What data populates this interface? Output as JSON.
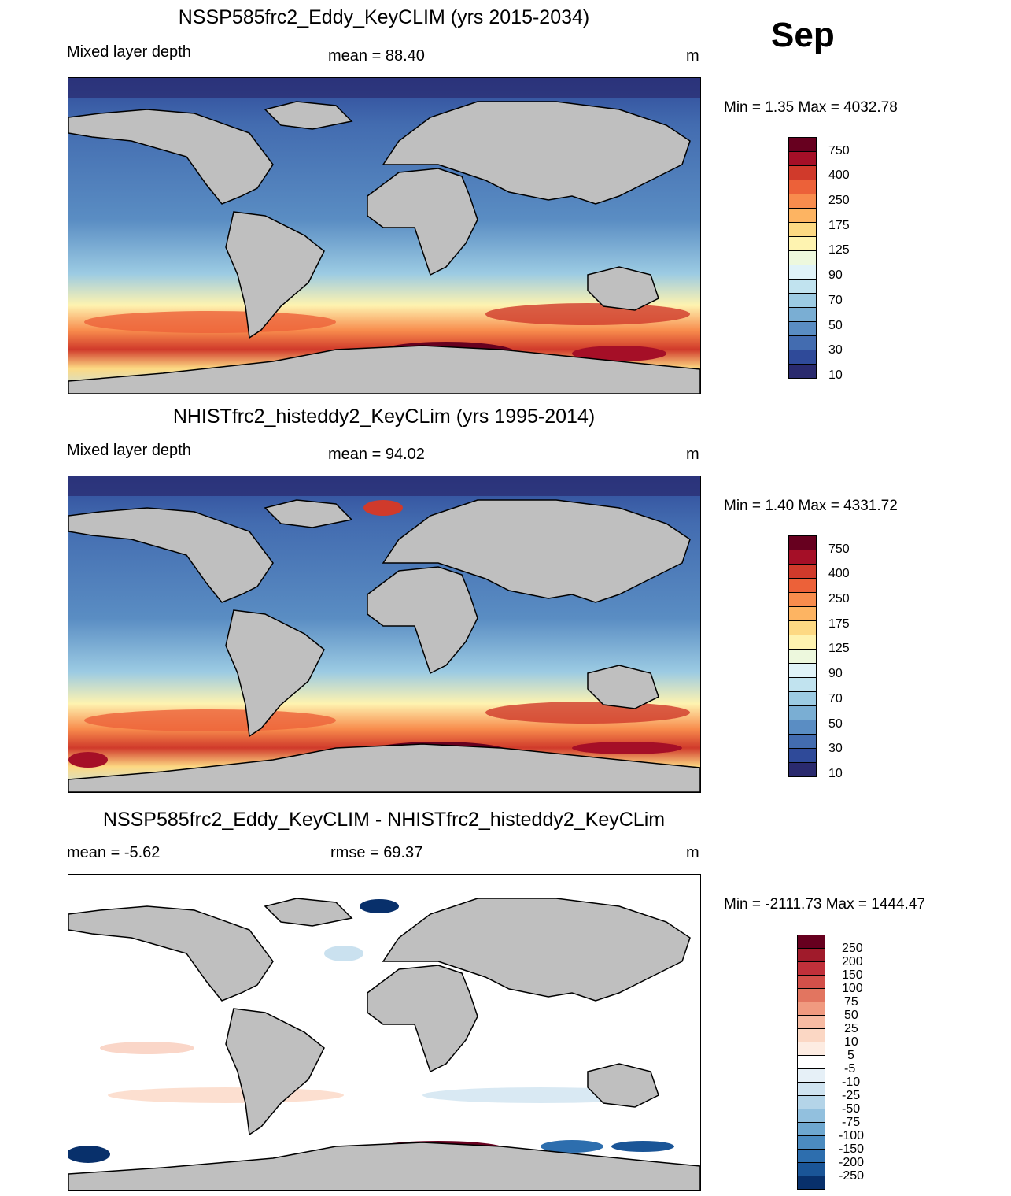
{
  "month": "Sep",
  "panels": [
    {
      "title": "NSSP585frc2_Eddy_KeyCLIM (yrs 2015-2034)",
      "left_label": "Mixed layer depth",
      "center_label": "mean =  88.40",
      "right_label": "m",
      "minmax": "Min =   1.35 Max = 4032.78"
    },
    {
      "title": "NHISTfrc2_histeddy2_KeyCLim (yrs 1995-2014)",
      "left_label": "Mixed layer depth",
      "center_label": "mean =  94.02",
      "right_label": "m",
      "minmax": "Min =   1.40 Max = 4331.72"
    },
    {
      "title": "NSSP585frc2_Eddy_KeyCLIM - NHISTfrc2_histeddy2_KeyCLim",
      "left_label": "mean =  -5.62",
      "center_label": "rmse =  69.37",
      "right_label": "m",
      "minmax": "Min = -2111.73 Max = 1444.47"
    }
  ],
  "colorbar_mld": {
    "labels": [
      "750",
      "400",
      "250",
      "175",
      "125",
      "90",
      "70",
      "50",
      "30",
      "10"
    ],
    "colors": [
      "#67001f",
      "#a50f27",
      "#d03a2b",
      "#ec6139",
      "#f88c4d",
      "#fdb462",
      "#fdd983",
      "#fef3b0",
      "#edf8dd",
      "#e0f3f8",
      "#c1e3ef",
      "#9ccbe3",
      "#7aaed3",
      "#5a8dc3",
      "#436cb0",
      "#2f4a99",
      "#2a2a6e"
    ]
  },
  "colorbar_diff": {
    "labels": [
      "250",
      "200",
      "150",
      "100",
      "75",
      "50",
      "25",
      "10",
      "5",
      "-5",
      "-10",
      "-25",
      "-50",
      "-75",
      "-100",
      "-150",
      "-200",
      "-250"
    ],
    "colors": [
      "#67001f",
      "#a01b2b",
      "#c0303a",
      "#d3504a",
      "#e27560",
      "#f09a80",
      "#f7bba3",
      "#fbd7c4",
      "#fdece2",
      "#ffffff",
      "#e6f0f7",
      "#cfe3f0",
      "#b4d4e8",
      "#92c0de",
      "#6ea7cf",
      "#4b8bc0",
      "#2d6eae",
      "#1a5597",
      "#08306b"
    ]
  }
}
